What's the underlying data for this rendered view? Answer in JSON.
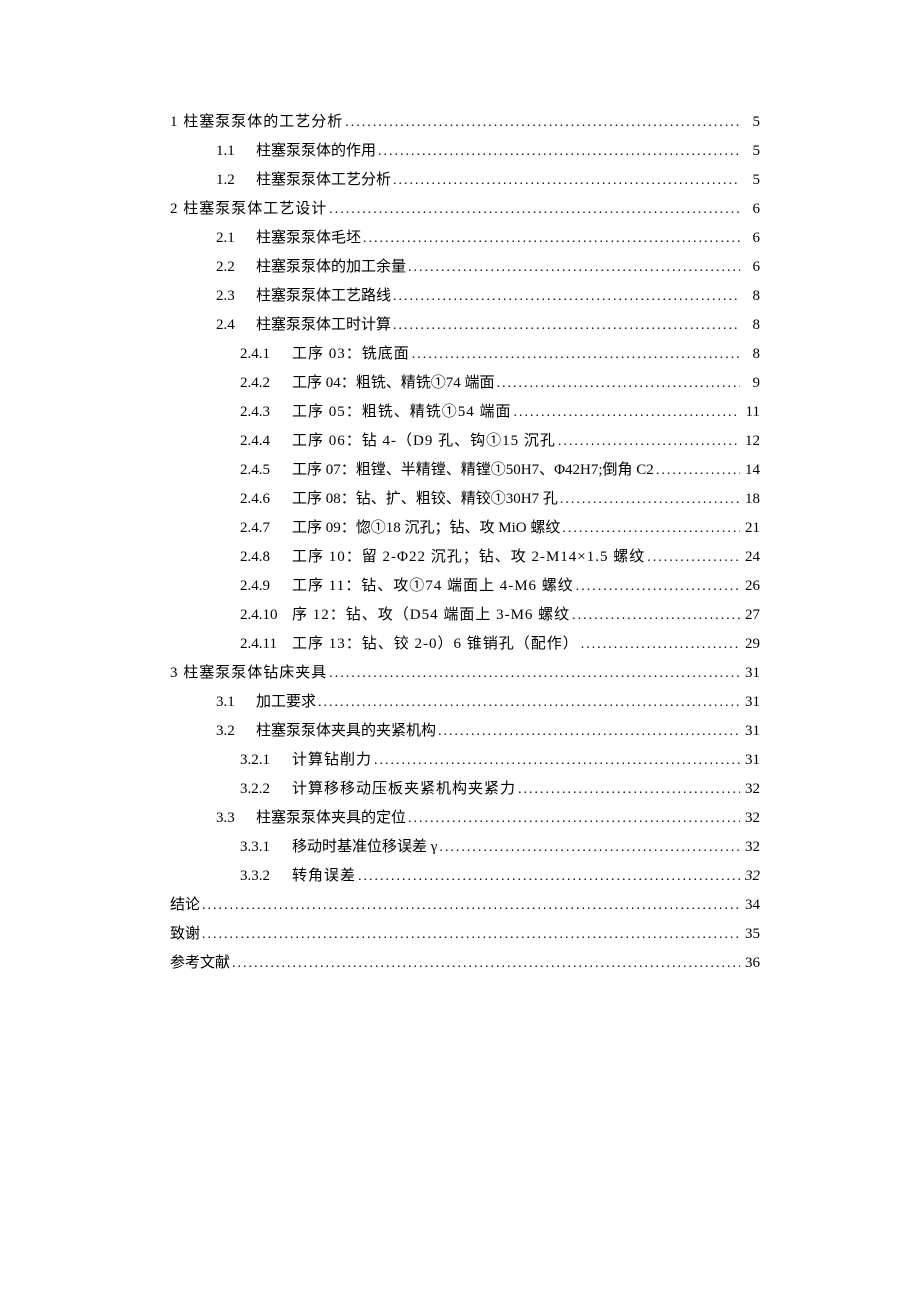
{
  "toc": [
    {
      "level": 1,
      "num": "",
      "title": "1 柱塞泵泵体的工艺分析",
      "page": "5",
      "spaced": true
    },
    {
      "level": 2,
      "num": "1.1",
      "title": "柱塞泵泵体的作用",
      "page": "5"
    },
    {
      "level": 2,
      "num": "1.2",
      "title": "柱塞泵泵体工艺分析",
      "page": "5"
    },
    {
      "level": 1,
      "num": "",
      "title": "2 柱塞泵泵体工艺设计",
      "page": "6",
      "spaced": true
    },
    {
      "level": 2,
      "num": "2.1",
      "title": "柱塞泵泵体毛坯",
      "page": "6"
    },
    {
      "level": 2,
      "num": "2.2",
      "title": "柱塞泵泵体的加工余量",
      "page": "6"
    },
    {
      "level": 2,
      "num": "2.3",
      "title": "柱塞泵泵体工艺路线",
      "page": "8"
    },
    {
      "level": 2,
      "num": "2.4",
      "title": "柱塞泵泵体工时计算",
      "page": "8"
    },
    {
      "level": 3,
      "num": "2.4.1",
      "title": "工序 03：铣底面",
      "page": "8",
      "spaced": true
    },
    {
      "level": 3,
      "num": "2.4.2",
      "title": "工序 04：粗铣、精铣①74 端面",
      "page": "9"
    },
    {
      "level": 3,
      "num": "2.4.3",
      "title": "工序 05：粗铣、精铣①54 端面",
      "page": "11",
      "spaced": true
    },
    {
      "level": 3,
      "num": "2.4.4",
      "title": "工序 06：钻 4-（D9 孔、钩①15 沉孔",
      "page": "12",
      "spaced": true
    },
    {
      "level": 3,
      "num": "2.4.5",
      "title": "工序 07：粗镗、半精镗、精镗①50H7、Φ42H7;倒角 C2",
      "page": "14"
    },
    {
      "level": 3,
      "num": "2.4.6",
      "title": "工序 08：钻、扩、粗铰、精铰①30H7 孔",
      "page": "18"
    },
    {
      "level": 3,
      "num": "2.4.7",
      "title": "工序 09：惚①18 沉孔；钻、攻 MiO 螺纹",
      "page": "21"
    },
    {
      "level": 3,
      "num": "2.4.8",
      "title": "工序 10：留 2-Φ22 沉孔；钻、攻 2-M14×1.5 螺纹",
      "page": "24",
      "spaced": true
    },
    {
      "level": 3,
      "num": "2.4.9",
      "title": "工序 11：钻、攻①74 端面上 4-M6 螺纹",
      "page": "26",
      "spaced": true
    },
    {
      "level": 3,
      "num": "2.4.10",
      "title": "    序 12：钻、攻（D54 端面上 3-M6 螺纹",
      "page": "27",
      "spaced": true
    },
    {
      "level": 3,
      "num": "2.4.11",
      "title": "工序 13：钻、铰 2-0）6 锥销孔（配作）",
      "page": "29",
      "spaced": true
    },
    {
      "level": 1,
      "num": "",
      "title": "3 柱塞泵泵体钻床夹具",
      "page": "31",
      "spaced": true
    },
    {
      "level": 2,
      "num": "3.1",
      "title": "加工要求",
      "page": "31"
    },
    {
      "level": 2,
      "num": "3.2",
      "title": "柱塞泵泵体夹具的夹紧机构",
      "page": "31"
    },
    {
      "level": 3,
      "num": "3.2.1",
      "title": "计算钻削力",
      "page": "31",
      "spaced": true
    },
    {
      "level": 3,
      "num": "3.2.2",
      "title": "计算移移动压板夹紧机构夹紧力",
      "page": "32",
      "spaced": true
    },
    {
      "level": 2,
      "num": "3.3",
      "title": "柱塞泵泵体夹具的定位",
      "page": "32"
    },
    {
      "level": 3,
      "num": "3.3.1",
      "title": "移动时基准位移误差 γ",
      "page": "32"
    },
    {
      "level": 3,
      "num": "3.3.2",
      "title": "转角误差",
      "page": "32",
      "spaced": true,
      "page_italic": true
    },
    {
      "level": 1,
      "num": "",
      "title": "结论",
      "page": "34"
    },
    {
      "level": 1,
      "num": "",
      "title": "致谢",
      "page": "35"
    },
    {
      "level": 1,
      "num": "",
      "title": "参考文献",
      "page": "36"
    }
  ]
}
